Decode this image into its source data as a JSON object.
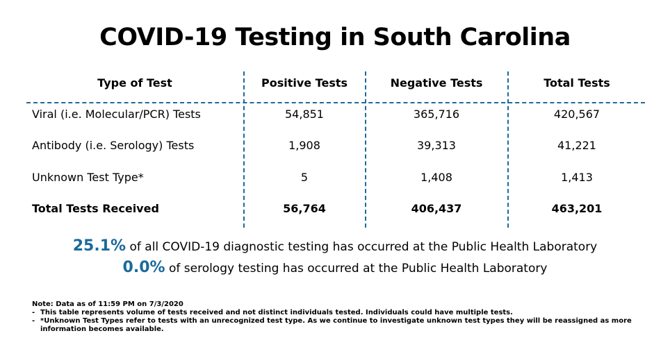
{
  "title": "COVID-19 Testing in South Carolina",
  "table": {
    "headers": [
      "Type of Test",
      "Positive Tests",
      "Negative Tests",
      "Total Tests"
    ],
    "rows": [
      {
        "type": "Viral (i.e. Molecular/PCR) Tests",
        "positive": "54,851",
        "negative": "365,716",
        "total": "420,567"
      },
      {
        "type": "Antibody (i.e. Serology) Tests",
        "positive": "1,908",
        "negative": "39,313",
        "total": "41,221"
      },
      {
        "type": "Unknown Test Type*",
        "positive": "5",
        "negative": "1,408",
        "total": "1,413"
      },
      {
        "type": "Total Tests Received",
        "positive": "56,764",
        "negative": "406,437",
        "total": "463,201"
      }
    ]
  },
  "stats": [
    {
      "pct": "25.1%",
      "text": " of all COVID-19 diagnostic testing has occurred at the Public Health Laboratory"
    },
    {
      "pct": "0.0%",
      "text": " of serology testing has occurred at the Public Health Laboratory"
    }
  ],
  "notes": {
    "heading": "Note: Data as of 11:59 PM on 7/3/2020",
    "items": [
      "This table represents volume of tests received and not distinct individuals tested. Individuals could have multiple tests.",
      "*Unknown Test Types refer to tests with an unrecognized test type. As we continue to investigate unknown test types they will be reassigned as more information becomes available."
    ],
    "bullet": "-"
  },
  "colors": {
    "accent": "#1b6a9b"
  }
}
